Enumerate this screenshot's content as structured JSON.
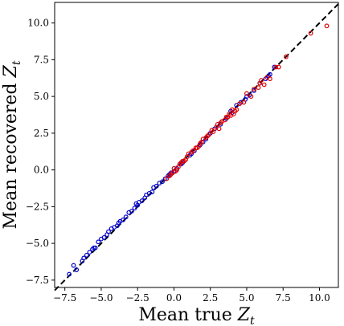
{
  "chart_data": {
    "type": "scatter",
    "xlabel": "Mean true ",
    "xlabel_var": "Z",
    "xlabel_sub": "t",
    "ylabel": "Mean recovered ",
    "ylabel_var": "Z",
    "ylabel_sub": "t",
    "xlim": [
      -8.2,
      11.3
    ],
    "ylim": [
      -8.0,
      11.4
    ],
    "xticks": [
      -7.5,
      -5.0,
      -2.5,
      0.0,
      2.5,
      5.0,
      7.5,
      10.0
    ],
    "xtick_labels": [
      "−7.5",
      "−5.0",
      "−2.5",
      "0.0",
      "2.5",
      "5.0",
      "7.5",
      "10.0"
    ],
    "yticks": [
      -7.5,
      -5.0,
      -2.5,
      0.0,
      2.5,
      5.0,
      7.5,
      10.0
    ],
    "ytick_labels": [
      "−7.5",
      "−5.0",
      "−2.5",
      "0.0",
      "2.5",
      "5.0",
      "7.5",
      "10.0"
    ],
    "grid": false,
    "reference_line": {
      "style": "dashed",
      "color": "#000000",
      "from": [
        -8.2,
        -8.2
      ],
      "to": [
        11.3,
        11.3
      ]
    },
    "series": [
      {
        "color": "#0000cc",
        "points": [
          [
            -7.2,
            -7.1
          ],
          [
            -6.9,
            -6.5
          ],
          [
            -6.7,
            -6.8
          ],
          [
            -6.3,
            -6.2
          ],
          [
            -6.0,
            -5.8
          ],
          [
            -5.8,
            -5.6
          ],
          [
            -5.6,
            -5.4
          ],
          [
            -5.4,
            -5.3
          ],
          [
            -5.2,
            -4.9
          ],
          [
            -5.0,
            -4.7
          ],
          [
            -4.8,
            -4.6
          ],
          [
            -4.5,
            -4.2
          ],
          [
            -4.3,
            -4.0
          ],
          [
            -4.1,
            -3.9
          ],
          [
            -3.9,
            -3.8
          ],
          [
            -3.7,
            -3.5
          ],
          [
            -3.5,
            -3.4
          ],
          [
            -3.3,
            -3.2
          ],
          [
            -3.1,
            -2.9
          ],
          [
            -2.9,
            -2.8
          ],
          [
            -2.7,
            -2.6
          ],
          [
            -2.5,
            -2.4
          ],
          [
            -2.4,
            -2.2
          ],
          [
            -2.2,
            -2.1
          ],
          [
            -2.0,
            -1.9
          ],
          [
            -1.9,
            -1.7
          ],
          [
            -1.7,
            -1.6
          ],
          [
            -1.5,
            -1.5
          ],
          [
            -1.4,
            -1.2
          ],
          [
            -1.2,
            -1.1
          ],
          [
            -1.0,
            -0.9
          ],
          [
            -0.8,
            -0.8
          ],
          [
            -0.6,
            -0.6
          ],
          [
            -0.4,
            -0.4
          ],
          [
            -0.2,
            -0.2
          ],
          [
            0.0,
            -0.1
          ],
          [
            0.2,
            0.1
          ],
          [
            0.5,
            0.4
          ],
          [
            0.8,
            0.7
          ],
          [
            1.1,
            1.0
          ],
          [
            1.4,
            1.3
          ],
          [
            1.8,
            1.7
          ],
          [
            2.2,
            2.1
          ],
          [
            2.5,
            2.5
          ],
          [
            2.8,
            2.8
          ],
          [
            3.2,
            3.1
          ],
          [
            3.6,
            3.5
          ],
          [
            4.0,
            3.9
          ],
          [
            4.3,
            4.4
          ],
          [
            4.6,
            4.6
          ],
          [
            5.0,
            5.0
          ],
          [
            5.5,
            5.4
          ],
          [
            5.9,
            5.9
          ],
          [
            6.3,
            6.2
          ],
          [
            6.6,
            6.5
          ],
          [
            6.9,
            7.0
          ],
          [
            2.0,
            1.9
          ],
          [
            1.2,
            1.1
          ],
          [
            0.6,
            0.5
          ],
          [
            -0.3,
            -0.3
          ],
          [
            -2.6,
            -2.3
          ],
          [
            -3.8,
            -3.6
          ],
          [
            -4.6,
            -4.4
          ],
          [
            -6.2,
            -6.0
          ],
          [
            -5.5,
            -5.3
          ],
          [
            3.9,
            4.0
          ],
          [
            4.9,
            4.8
          ],
          [
            6.5,
            6.4
          ],
          [
            5.2,
            5.1
          ]
        ]
      },
      {
        "color": "#e00000",
        "points": [
          [
            -0.5,
            -0.6
          ],
          [
            -0.3,
            -0.4
          ],
          [
            -0.1,
            -0.2
          ],
          [
            0.0,
            0.1
          ],
          [
            0.1,
            -0.1
          ],
          [
            0.3,
            0.2
          ],
          [
            0.4,
            0.4
          ],
          [
            0.6,
            0.6
          ],
          [
            0.7,
            0.6
          ],
          [
            0.9,
            0.9
          ],
          [
            1.0,
            1.1
          ],
          [
            1.2,
            1.2
          ],
          [
            1.3,
            1.3
          ],
          [
            1.5,
            1.5
          ],
          [
            1.6,
            1.5
          ],
          [
            1.8,
            1.8
          ],
          [
            2.0,
            2.1
          ],
          [
            2.2,
            2.2
          ],
          [
            2.4,
            2.4
          ],
          [
            2.6,
            2.7
          ],
          [
            2.7,
            2.6
          ],
          [
            2.9,
            2.9
          ],
          [
            3.0,
            3.1
          ],
          [
            3.2,
            3.2
          ],
          [
            3.3,
            3.3
          ],
          [
            3.5,
            3.4
          ],
          [
            3.6,
            3.6
          ],
          [
            3.7,
            3.6
          ],
          [
            3.8,
            3.8
          ],
          [
            3.9,
            3.7
          ],
          [
            4.0,
            4.1
          ],
          [
            4.1,
            3.8
          ],
          [
            4.3,
            4.1
          ],
          [
            4.5,
            4.5
          ],
          [
            4.8,
            4.6
          ],
          [
            5.0,
            5.2
          ],
          [
            5.3,
            5.0
          ],
          [
            5.5,
            5.5
          ],
          [
            5.8,
            5.6
          ],
          [
            6.0,
            6.1
          ],
          [
            6.2,
            5.8
          ],
          [
            6.4,
            6.3
          ],
          [
            6.6,
            6.2
          ],
          [
            7.0,
            7.0
          ],
          [
            7.2,
            7.0
          ],
          [
            7.7,
            7.7
          ],
          [
            9.4,
            9.3
          ],
          [
            10.5,
            9.8
          ],
          [
            0.2,
            0.0
          ],
          [
            0.8,
            0.7
          ],
          [
            1.9,
            1.9
          ],
          [
            2.3,
            2.3
          ],
          [
            3.1,
            2.8
          ],
          [
            4.2,
            4.0
          ],
          [
            5.9,
            5.9
          ],
          [
            -0.2,
            -0.3
          ],
          [
            0.5,
            0.5
          ],
          [
            1.7,
            1.6
          ]
        ]
      }
    ]
  }
}
